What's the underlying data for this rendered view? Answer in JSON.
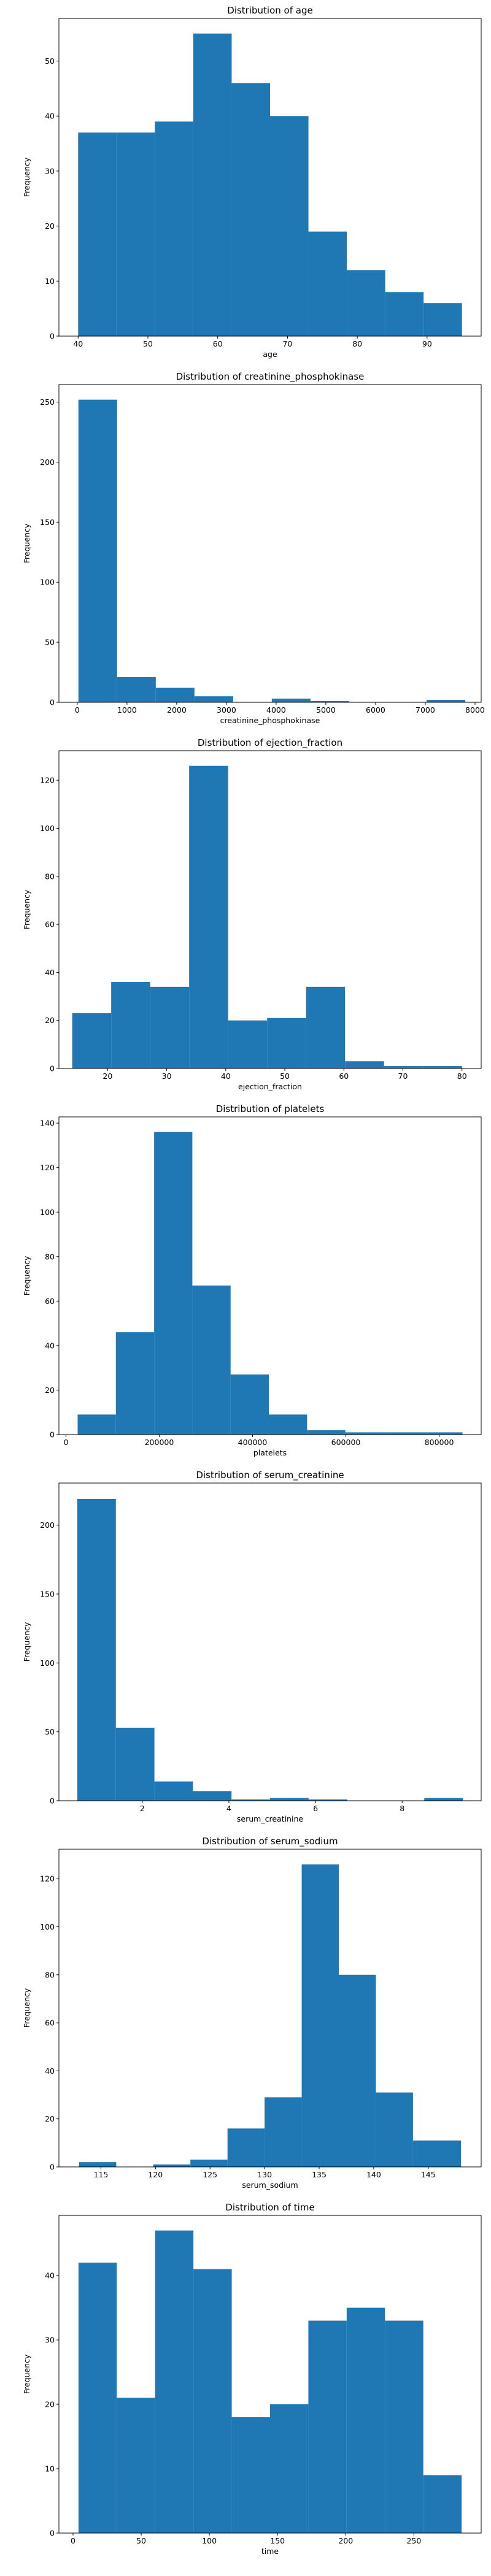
{
  "chart_data": [
    {
      "type": "bar",
      "title": "Distribution of age",
      "xlabel": "age",
      "ylabel": "Frequency",
      "xlim": [
        37.25,
        97.75
      ],
      "ylim": [
        0,
        57.75
      ],
      "xticks": [
        40,
        50,
        60,
        70,
        80,
        90
      ],
      "yticks": [
        0,
        10,
        20,
        30,
        40,
        50
      ],
      "bin_edges": [
        40,
        45.5,
        51,
        56.5,
        62,
        67.5,
        73,
        78.5,
        84,
        89.5,
        95
      ],
      "values": [
        37,
        37,
        39,
        55,
        46,
        40,
        19,
        12,
        8,
        6
      ]
    },
    {
      "type": "bar",
      "title": "Distribution of creatinine_phosphokinase",
      "xlabel": "creatinine_phosphokinase",
      "ylabel": "Frequency",
      "xlim": [
        -369,
        8124
      ],
      "ylim": [
        0,
        264.6
      ],
      "xticks": [
        0,
        1000,
        2000,
        3000,
        4000,
        5000,
        6000,
        7000,
        8000
      ],
      "yticks": [
        0,
        50,
        100,
        150,
        200,
        250
      ],
      "bin_edges": [
        23,
        801,
        1579,
        2357,
        3135,
        3913,
        4691,
        5469,
        6247,
        7025,
        7803
      ],
      "values": [
        252,
        21,
        12,
        5,
        0,
        3,
        1,
        0,
        0,
        2
      ]
    },
    {
      "type": "bar",
      "title": "Distribution of ejection_fraction",
      "xlabel": "ejection_fraction",
      "ylabel": "Frequency",
      "xlim": [
        11.75,
        83.25
      ],
      "ylim": [
        0,
        132.3
      ],
      "xticks": [
        20,
        30,
        40,
        50,
        60,
        70,
        80
      ],
      "yticks": [
        0,
        20,
        40,
        60,
        80,
        100,
        120
      ],
      "bin_edges": [
        14,
        20.6,
        27.2,
        33.8,
        40.4,
        47,
        53.6,
        60.2,
        66.8,
        73.4,
        80
      ],
      "values": [
        23,
        36,
        34,
        126,
        20,
        21,
        34,
        3,
        1,
        1
      ]
    },
    {
      "type": "bar",
      "title": "Distribution of platelets",
      "xlabel": "platelets",
      "ylabel": "Frequency",
      "xlim": [
        -15025,
        890025
      ],
      "ylim": [
        0,
        142.8
      ],
      "xticks": [
        0,
        200000,
        400000,
        600000,
        800000
      ],
      "xtick_labels": [
        "0",
        "200000",
        "400000",
        "600000",
        "800000"
      ],
      "yticks": [
        0,
        20,
        40,
        60,
        80,
        100,
        120,
        140
      ],
      "bin_edges": [
        25100,
        107060,
        189020,
        270980,
        352940,
        434900,
        516860,
        598820,
        680780,
        762740,
        850000
      ],
      "values": [
        9,
        46,
        136,
        67,
        27,
        9,
        2,
        1,
        1,
        1
      ]
    },
    {
      "type": "bar",
      "title": "Distribution of serum_creatinine",
      "xlabel": "serum_creatinine",
      "ylabel": "Frequency",
      "xlim": [
        0.075,
        9.825
      ],
      "ylim": [
        0,
        230.55
      ],
      "xticks": [
        2,
        4,
        6,
        8
      ],
      "yticks": [
        0,
        50,
        100,
        150,
        200
      ],
      "bin_edges": [
        0.5,
        1.39,
        2.28,
        3.17,
        4.06,
        4.95,
        5.84,
        6.73,
        7.62,
        8.51,
        9.4
      ],
      "values": [
        219,
        53,
        14,
        7,
        1,
        2,
        1,
        0,
        0,
        2
      ]
    },
    {
      "type": "bar",
      "title": "Distribution of serum_sodium",
      "xlabel": "serum_sodium",
      "ylabel": "Frequency",
      "xlim": [
        111.15,
        149.85
      ],
      "ylim": [
        0,
        132.3
      ],
      "xticks": [
        115,
        120,
        125,
        130,
        135,
        140,
        145
      ],
      "yticks": [
        0,
        20,
        40,
        60,
        80,
        100,
        120
      ],
      "bin_edges": [
        113,
        116.4,
        119.8,
        123.2,
        126.6,
        130,
        133.4,
        136.8,
        140.2,
        143.6,
        148
      ],
      "values": [
        2,
        0,
        1,
        3,
        16,
        29,
        126,
        80,
        31,
        11
      ]
    },
    {
      "type": "bar",
      "title": "Distribution of time",
      "xlabel": "time",
      "ylabel": "Frequency",
      "xlim": [
        -10.35,
        299.35
      ],
      "ylim": [
        0,
        49.35
      ],
      "xticks": [
        0,
        50,
        100,
        150,
        200,
        250
      ],
      "yticks": [
        0,
        10,
        20,
        30,
        40
      ],
      "bin_edges": [
        4,
        32.1,
        60.2,
        88.3,
        116.4,
        144.5,
        172.6,
        200.7,
        228.8,
        256.9,
        285
      ],
      "values": [
        42,
        21,
        47,
        41,
        18,
        20,
        33,
        35,
        33,
        9
      ]
    }
  ]
}
